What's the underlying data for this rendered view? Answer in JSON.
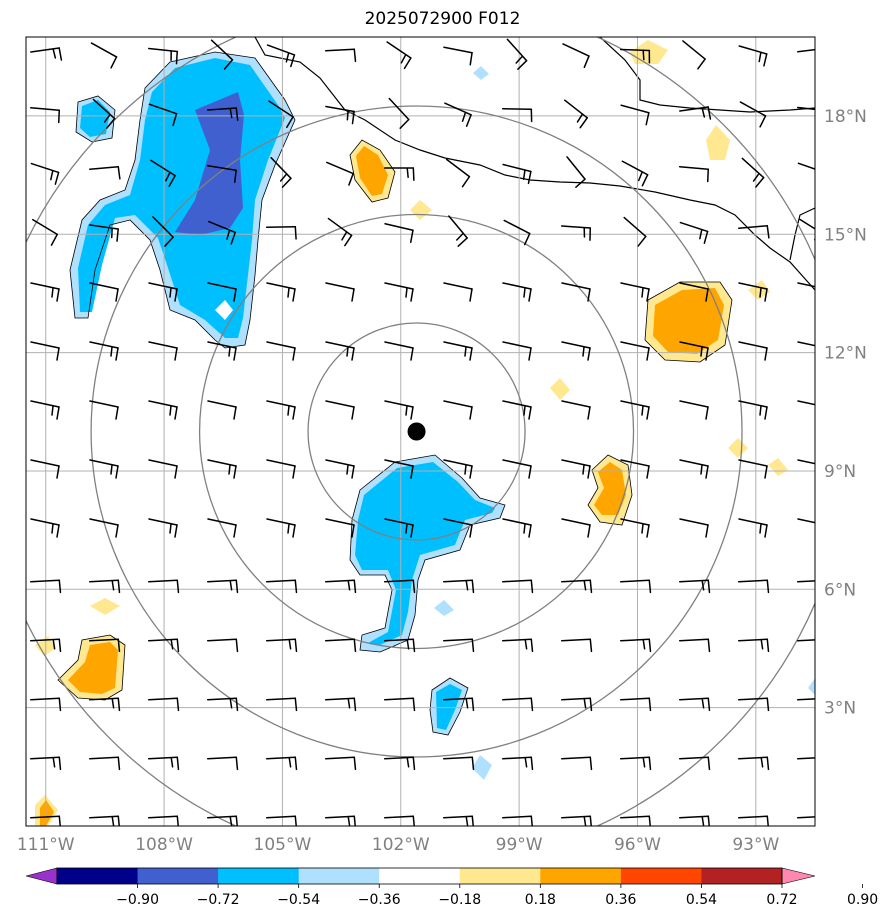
{
  "title": "2025072900 F012",
  "map": {
    "lon_range": [
      -111.5,
      -91.5
    ],
    "lat_range": [
      0,
      20
    ],
    "lon_ticks": [
      {
        "value": -111,
        "label": "111°W"
      },
      {
        "value": -108,
        "label": "108°W"
      },
      {
        "value": -105,
        "label": "105°W"
      },
      {
        "value": -102,
        "label": "102°W"
      },
      {
        "value": -99,
        "label": "99°W"
      },
      {
        "value": -96,
        "label": "96°W"
      },
      {
        "value": -93,
        "label": "93°W"
      }
    ],
    "lat_ticks": [
      {
        "value": 3,
        "label": "3°N"
      },
      {
        "value": 6,
        "label": "6°N"
      },
      {
        "value": 9,
        "label": "9°N"
      },
      {
        "value": 12,
        "label": "12°N"
      },
      {
        "value": 15,
        "label": "15°N"
      },
      {
        "value": 18,
        "label": "18°N"
      }
    ],
    "center": {
      "lon": -101.6,
      "lat": 10.0
    },
    "range_rings_deg": [
      2.75,
      5.5,
      8.25,
      11.0
    ],
    "colors": {
      "grid": "#b0b0b0",
      "ring": "#808080",
      "coast": "#000000",
      "light_blue": "#b0e0ff",
      "blue": "#00bfff",
      "dark_blue": "#4060d0",
      "light_yellow": "#ffe890",
      "orange": "#ffa500"
    }
  },
  "colorbar": {
    "ticks": [
      "−0.90",
      "−0.72",
      "−0.54",
      "−0.36",
      "−0.18",
      "0.18",
      "0.36",
      "0.54",
      "0.72",
      "0.90"
    ],
    "colors": [
      "#9932cc",
      "#00008b",
      "#4060d0",
      "#00bfff",
      "#b0e0ff",
      "#ffffff",
      "#ffe890",
      "#ffa500",
      "#ff4500",
      "#b22222",
      "#ff88b0"
    ]
  }
}
